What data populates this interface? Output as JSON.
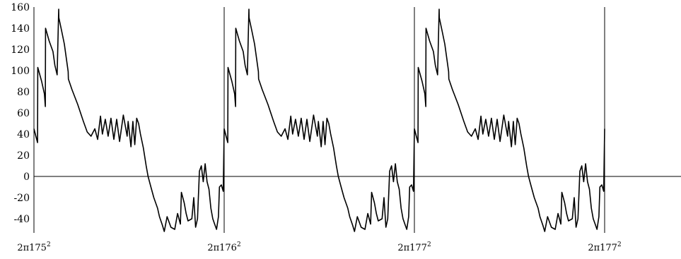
{
  "chart_data": {
    "type": "line",
    "title": "",
    "xlabel": "",
    "ylabel": "",
    "ylim": [
      -55,
      160
    ],
    "xlim": [
      0,
      3.4
    ],
    "yticks": [
      160,
      140,
      120,
      100,
      80,
      60,
      40,
      20,
      0,
      -20,
      -40
    ],
    "xticks": [
      {
        "x": 0,
        "label": "2π175",
        "sup": "2"
      },
      {
        "x": 1,
        "label": "2π176",
        "sup": "2"
      },
      {
        "x": 2,
        "label": "2π177",
        "sup": "2"
      },
      {
        "x": 3,
        "label": "2π177",
        "sup": "2"
      }
    ],
    "vertical_lines": [
      1,
      2,
      3
    ],
    "zero_line": true,
    "grid": false,
    "line_color": "#000000",
    "series": [
      {
        "period_length": 1,
        "periods": 3,
        "x": [
          0.0,
          0.01,
          0.019,
          0.02,
          0.04,
          0.055,
          0.06,
          0.061,
          0.08,
          0.1,
          0.11,
          0.122,
          0.13,
          0.131,
          0.145,
          0.16,
          0.17,
          0.18,
          0.181,
          0.2,
          0.23,
          0.26,
          0.28,
          0.3,
          0.32,
          0.335,
          0.35,
          0.36,
          0.375,
          0.39,
          0.405,
          0.42,
          0.435,
          0.45,
          0.47,
          0.49,
          0.495,
          0.51,
          0.52,
          0.53,
          0.54,
          0.55,
          0.56,
          0.575,
          0.59,
          0.6,
          0.615,
          0.63,
          0.65,
          0.66,
          0.675,
          0.685,
          0.7,
          0.72,
          0.74,
          0.755,
          0.77,
          0.775,
          0.79,
          0.8,
          0.81,
          0.83,
          0.84,
          0.85,
          0.86,
          0.87,
          0.88,
          0.89,
          0.9,
          0.91,
          0.92,
          0.93,
          0.94,
          0.95,
          0.96,
          0.97,
          0.975,
          0.985,
          0.995,
          1.0
        ],
        "y": [
          45,
          38,
          32,
          103,
          90,
          78,
          66,
          140,
          128,
          118,
          105,
          96,
          158,
          150,
          138,
          125,
          112,
          99,
          92,
          82,
          68,
          52,
          42,
          38,
          45,
          35,
          57,
          40,
          54,
          38,
          55,
          35,
          54,
          33,
          58,
          38,
          52,
          28,
          52,
          30,
          55,
          50,
          40,
          27,
          10,
          0,
          -10,
          -20,
          -30,
          -38,
          -46,
          -52,
          -38,
          -48,
          -50,
          -35,
          -45,
          -15,
          -25,
          -35,
          -42,
          -40,
          -20,
          -48,
          -40,
          5,
          10,
          -5,
          12,
          -5,
          -12,
          -30,
          -40,
          -45,
          -50,
          -38,
          -10,
          -8,
          -14,
          45
        ]
      }
    ]
  }
}
